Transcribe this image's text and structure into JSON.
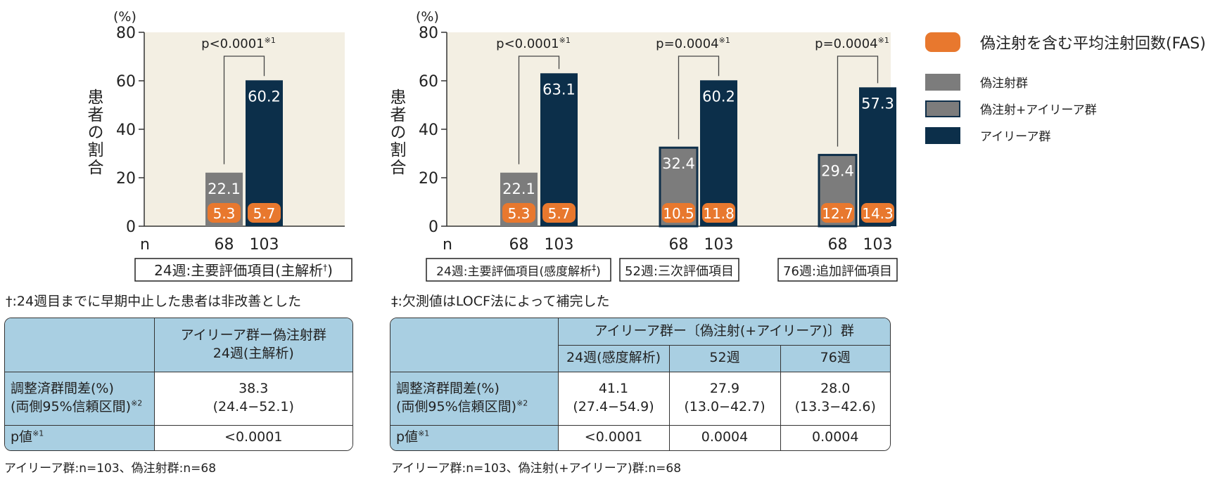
{
  "legend": {
    "title": "偽注射を含む平均注射回数(FAS)",
    "items": [
      {
        "label": "偽注射群",
        "color": "#7c7c7c",
        "border": "#7c7c7c"
      },
      {
        "label": "偽注射+アイリーア群",
        "color": "#7c7c7c",
        "border": "#0e2f4a"
      },
      {
        "label": "アイリーア群",
        "color": "#0c2f4a",
        "border": "#0c2f4a"
      }
    ],
    "injection_color": "#e8782e"
  },
  "chart_data": [
    {
      "type": "bar",
      "y_unit": "(%)",
      "ylabel": "患者の割合",
      "ylim": [
        0,
        80
      ],
      "yticks": [
        0,
        20,
        40,
        60,
        80
      ],
      "n_label": "n",
      "groups": [
        {
          "label": "24週:主要評価項目(主解析",
          "label_mark": "†",
          "label_close": ")",
          "bars": [
            {
              "series": "偽注射群",
              "value": 22.1,
              "value_label": "22.1",
              "injections": "5.3",
              "n": "68"
            },
            {
              "series": "アイリーア群",
              "value": 60.2,
              "value_label": "60.2",
              "injections": "5.7",
              "n": "103"
            }
          ],
          "p_text": "p<0.0001",
          "p_mark": "※1"
        }
      ]
    },
    {
      "type": "bar",
      "y_unit": "(%)",
      "ylabel": "患者の割合",
      "ylim": [
        0,
        80
      ],
      "yticks": [
        0,
        20,
        40,
        60,
        80
      ],
      "n_label": "n",
      "groups": [
        {
          "label": "24週:主要評価項目(感度解析",
          "label_mark": "‡",
          "label_close": ")",
          "bars": [
            {
              "series": "偽注射群",
              "value": 22.1,
              "value_label": "22.1",
              "injections": "5.3",
              "n": "68"
            },
            {
              "series": "アイリーア群",
              "value": 63.1,
              "value_label": "63.1",
              "injections": "5.7",
              "n": "103"
            }
          ],
          "p_text": "p<0.0001",
          "p_mark": "※1"
        },
        {
          "label": "52週:三次評価項目",
          "label_mark": "",
          "label_close": "",
          "bars": [
            {
              "series": "偽注射+アイリーア群",
              "value": 32.4,
              "value_label": "32.4",
              "injections": "10.5",
              "n": "68"
            },
            {
              "series": "アイリーア群",
              "value": 60.2,
              "value_label": "60.2",
              "injections": "11.8",
              "n": "103"
            }
          ],
          "p_text": "p=0.0004",
          "p_mark": "※1"
        },
        {
          "label": "76週:追加評価項目",
          "label_mark": "",
          "label_close": "",
          "bars": [
            {
              "series": "偽注射+アイリーア群",
              "value": 29.4,
              "value_label": "29.4",
              "injections": "12.7",
              "n": "68"
            },
            {
              "series": "アイリーア群",
              "value": 57.3,
              "value_label": "57.3",
              "injections": "14.3",
              "n": "103"
            }
          ],
          "p_text": "p=0.0004",
          "p_mark": "※1"
        }
      ]
    }
  ],
  "notes": {
    "left": "†:24週目までに早期中止した患者は非改善とした",
    "right": "‡:欠測値はLOCF法によって補完した"
  },
  "table_left": {
    "header_line1": "アイリーア群ー偽注射群",
    "header_line2": "24週(主解析)",
    "row1_label_line1": "調整済群間差(%)",
    "row1_label_line2": "(両側95%信頼区間)",
    "row1_label_mark": "※2",
    "row1_value_line1": "38.3",
    "row1_value_line2": "(24.4−52.1)",
    "row2_label": "p値",
    "row2_label_mark": "※1",
    "row2_value": "<0.0001"
  },
  "table_right": {
    "header_top": "アイリーア群ー〔偽注射(+アイリーア)〕群",
    "subheaders": [
      "24週(感度解析)",
      "52週",
      "76週"
    ],
    "row1_label_line1": "調整済群間差(%)",
    "row1_label_line2": "(両側95%信頼区間)",
    "row1_label_mark": "※2",
    "row1_values": [
      {
        "line1": "41.1",
        "line2": "(27.4−54.9)"
      },
      {
        "line1": "27.9",
        "line2": "(13.0−42.7)"
      },
      {
        "line1": "28.0",
        "line2": "(13.3−42.6)"
      }
    ],
    "row2_label": "p値",
    "row2_label_mark": "※1",
    "row2_values": [
      "<0.0001",
      "0.0004",
      "0.0004"
    ]
  },
  "footnotes": {
    "left": "アイリーア群:n=103、偽注射群:n=68",
    "right": "アイリーア群:n=103、偽注射(+アイリーア)群:n=68"
  }
}
